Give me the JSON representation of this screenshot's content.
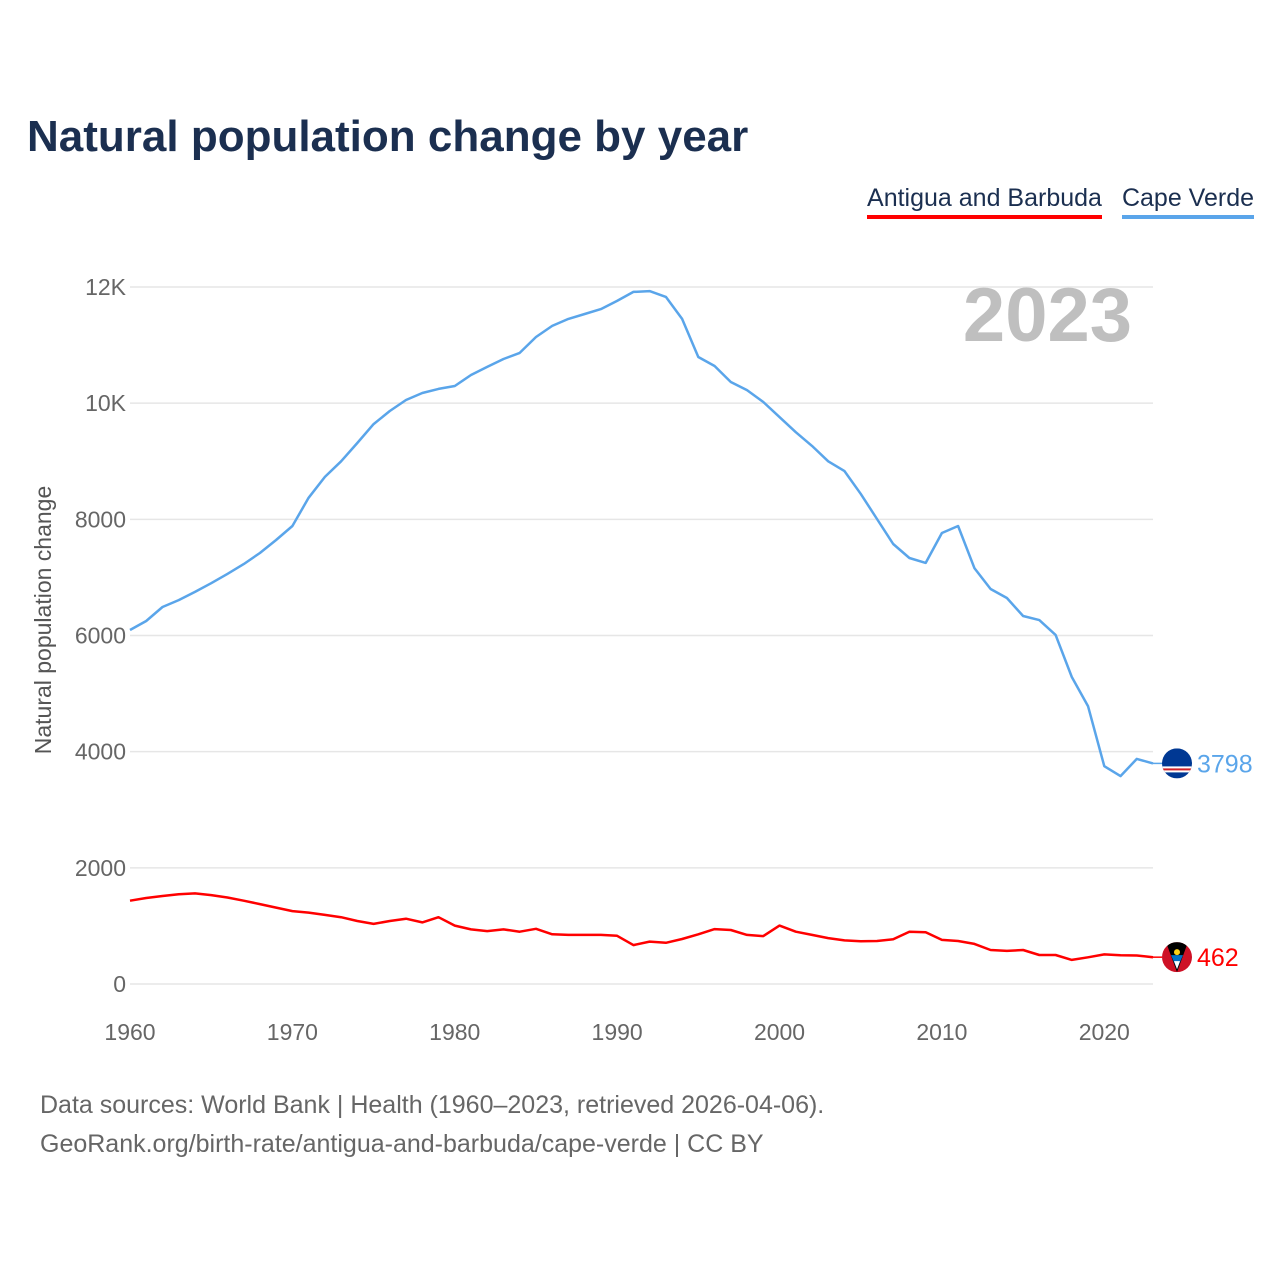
{
  "title": "Natural population change by year",
  "footer": {
    "line1": "Data sources: World Bank | Health (1960–2023, retrieved 2026-04-06).",
    "line2": "GeoRank.org/birth-rate/antigua-and-barbuda/cape-verde | CC BY"
  },
  "chart_data": {
    "type": "line",
    "title": "Natural population change by year",
    "xlabel": "",
    "ylabel": "Natural population change",
    "year_watermark": "2023",
    "xlim": [
      1960,
      2023
    ],
    "ylim": [
      0,
      12000
    ],
    "x_ticks": [
      1960,
      1970,
      1980,
      1990,
      2000,
      2010,
      2020
    ],
    "x_tick_labels": [
      "1960",
      "1970",
      "1980",
      "1990",
      "2000",
      "2010",
      "2020"
    ],
    "y_ticks": [
      0,
      2000,
      4000,
      6000,
      8000,
      10000,
      12000
    ],
    "y_tick_labels": [
      "0",
      "2000",
      "4000",
      "6000",
      "8000",
      "10K",
      "12K"
    ],
    "grid": true,
    "legend_position": "top-right",
    "x": [
      1960,
      1961,
      1962,
      1963,
      1964,
      1965,
      1966,
      1967,
      1968,
      1969,
      1970,
      1971,
      1972,
      1973,
      1974,
      1975,
      1976,
      1977,
      1978,
      1979,
      1980,
      1981,
      1982,
      1983,
      1984,
      1985,
      1986,
      1987,
      1988,
      1989,
      1990,
      1991,
      1992,
      1993,
      1994,
      1995,
      1996,
      1997,
      1998,
      1999,
      2000,
      2001,
      2002,
      2003,
      2004,
      2005,
      2006,
      2007,
      2008,
      2009,
      2010,
      2011,
      2012,
      2013,
      2014,
      2015,
      2016,
      2017,
      2018,
      2019,
      2020,
      2021,
      2022,
      2023
    ],
    "series": [
      {
        "name": "Antigua and Barbuda",
        "color": "#ff0000",
        "end_label": "462",
        "values": [
          1435,
          1480,
          1515,
          1545,
          1560,
          1530,
          1490,
          1435,
          1375,
          1315,
          1255,
          1230,
          1190,
          1150,
          1085,
          1035,
          1085,
          1125,
          1060,
          1150,
          1005,
          940,
          910,
          940,
          900,
          950,
          855,
          845,
          845,
          845,
          830,
          670,
          730,
          710,
          775,
          855,
          945,
          930,
          845,
          825,
          1005,
          900,
          845,
          790,
          750,
          735,
          740,
          770,
          900,
          890,
          760,
          740,
          690,
          585,
          570,
          585,
          500,
          500,
          415,
          460,
          510,
          495,
          490,
          462
        ]
      },
      {
        "name": "Cape Verde",
        "color": "#5aa5ea",
        "end_label": "3798",
        "values": [
          6095,
          6250,
          6490,
          6610,
          6750,
          6900,
          7060,
          7230,
          7420,
          7645,
          7885,
          8370,
          8730,
          9000,
          9315,
          9640,
          9865,
          10055,
          10175,
          10245,
          10295,
          10485,
          10625,
          10760,
          10865,
          11140,
          11330,
          11450,
          11535,
          11620,
          11760,
          11915,
          11930,
          11830,
          11450,
          10795,
          10640,
          10365,
          10225,
          10020,
          9760,
          9500,
          9265,
          9000,
          8830,
          8440,
          8005,
          7575,
          7335,
          7250,
          7765,
          7885,
          7160,
          6800,
          6645,
          6335,
          6265,
          6010,
          5285,
          4785,
          3750,
          3580,
          3875,
          3798
        ]
      }
    ]
  }
}
